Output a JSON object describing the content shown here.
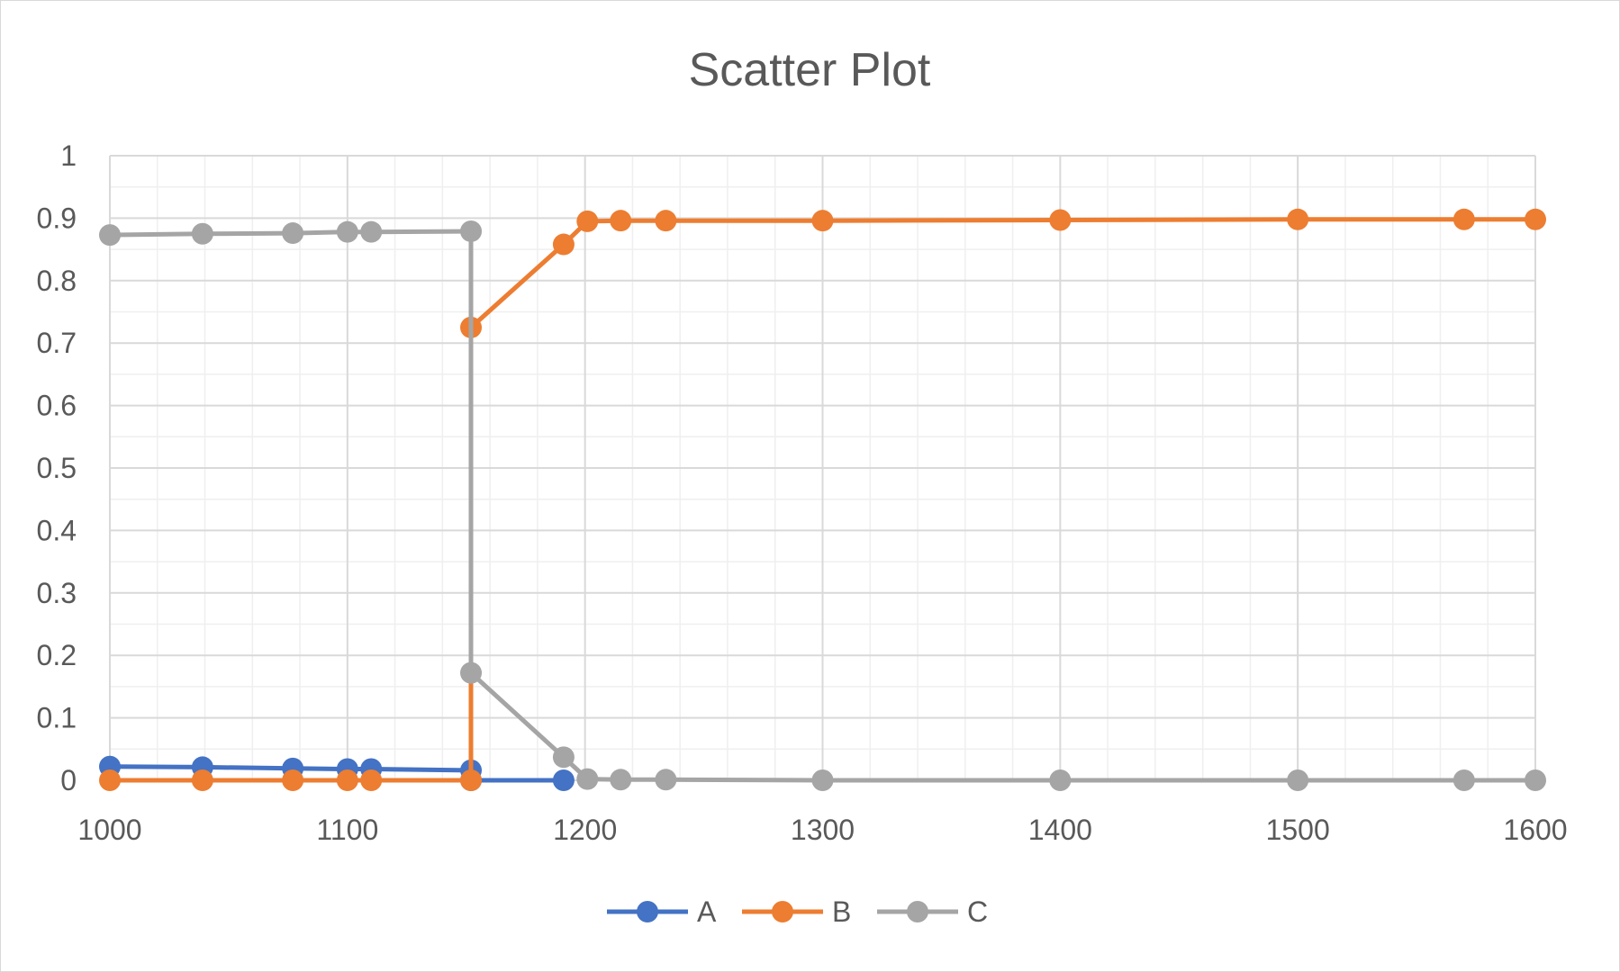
{
  "chart_data": {
    "type": "scatter",
    "title": "Scatter Plot",
    "xlabel": "",
    "ylabel": "",
    "xlim": [
      1000,
      1600
    ],
    "ylim": [
      0,
      1
    ],
    "x_ticks": [
      1000,
      1100,
      1200,
      1300,
      1400,
      1500,
      1600
    ],
    "x_tick_labels": [
      "1000",
      "1100",
      "1200",
      "1300",
      "1400",
      "1500",
      "1600"
    ],
    "y_ticks": [
      0,
      0.1,
      0.2,
      0.3,
      0.4,
      0.5,
      0.6,
      0.7,
      0.8,
      0.9,
      1
    ],
    "y_tick_labels": [
      "0",
      "0.1",
      "0.2",
      "0.3",
      "0.4",
      "0.5",
      "0.6",
      "0.7",
      "0.8",
      "0.9",
      "1"
    ],
    "grid": {
      "major": true,
      "minor": true,
      "minor_x_step": 20,
      "minor_y_step": 0.05
    },
    "lines_connected": true,
    "legend": {
      "position": "bottom"
    },
    "series": [
      {
        "name": "A",
        "color": "#4472C4",
        "points": [
          [
            1000,
            0.022
          ],
          [
            1039,
            0.021
          ],
          [
            1077,
            0.019
          ],
          [
            1100,
            0.018
          ],
          [
            1110,
            0.018
          ],
          [
            1152,
            0.016
          ],
          [
            1152,
            0.0
          ],
          [
            1191,
            0.0
          ]
        ]
      },
      {
        "name": "B",
        "color": "#ED7D31",
        "points": [
          [
            1000,
            0.0
          ],
          [
            1039,
            0.0
          ],
          [
            1077,
            0.0
          ],
          [
            1100,
            0.0
          ],
          [
            1110,
            0.0
          ],
          [
            1152,
            0.0
          ],
          [
            1152,
            0.725
          ],
          [
            1191,
            0.858
          ],
          [
            1201,
            0.895
          ],
          [
            1215,
            0.896
          ],
          [
            1234,
            0.896
          ],
          [
            1300,
            0.896
          ],
          [
            1400,
            0.897
          ],
          [
            1500,
            0.898
          ],
          [
            1570,
            0.898
          ],
          [
            1600,
            0.898
          ]
        ]
      },
      {
        "name": "C",
        "color": "#A5A5A5",
        "points": [
          [
            1000,
            0.873
          ],
          [
            1039,
            0.875
          ],
          [
            1077,
            0.876
          ],
          [
            1100,
            0.878
          ],
          [
            1110,
            0.878
          ],
          [
            1152,
            0.879
          ],
          [
            1152,
            0.172
          ],
          [
            1191,
            0.037
          ],
          [
            1201,
            0.002
          ],
          [
            1215,
            0.001
          ],
          [
            1234,
            0.001
          ],
          [
            1300,
            0.0
          ],
          [
            1400,
            0.0
          ],
          [
            1500,
            0.0
          ],
          [
            1570,
            0.0
          ],
          [
            1600,
            0.0
          ]
        ]
      }
    ]
  }
}
